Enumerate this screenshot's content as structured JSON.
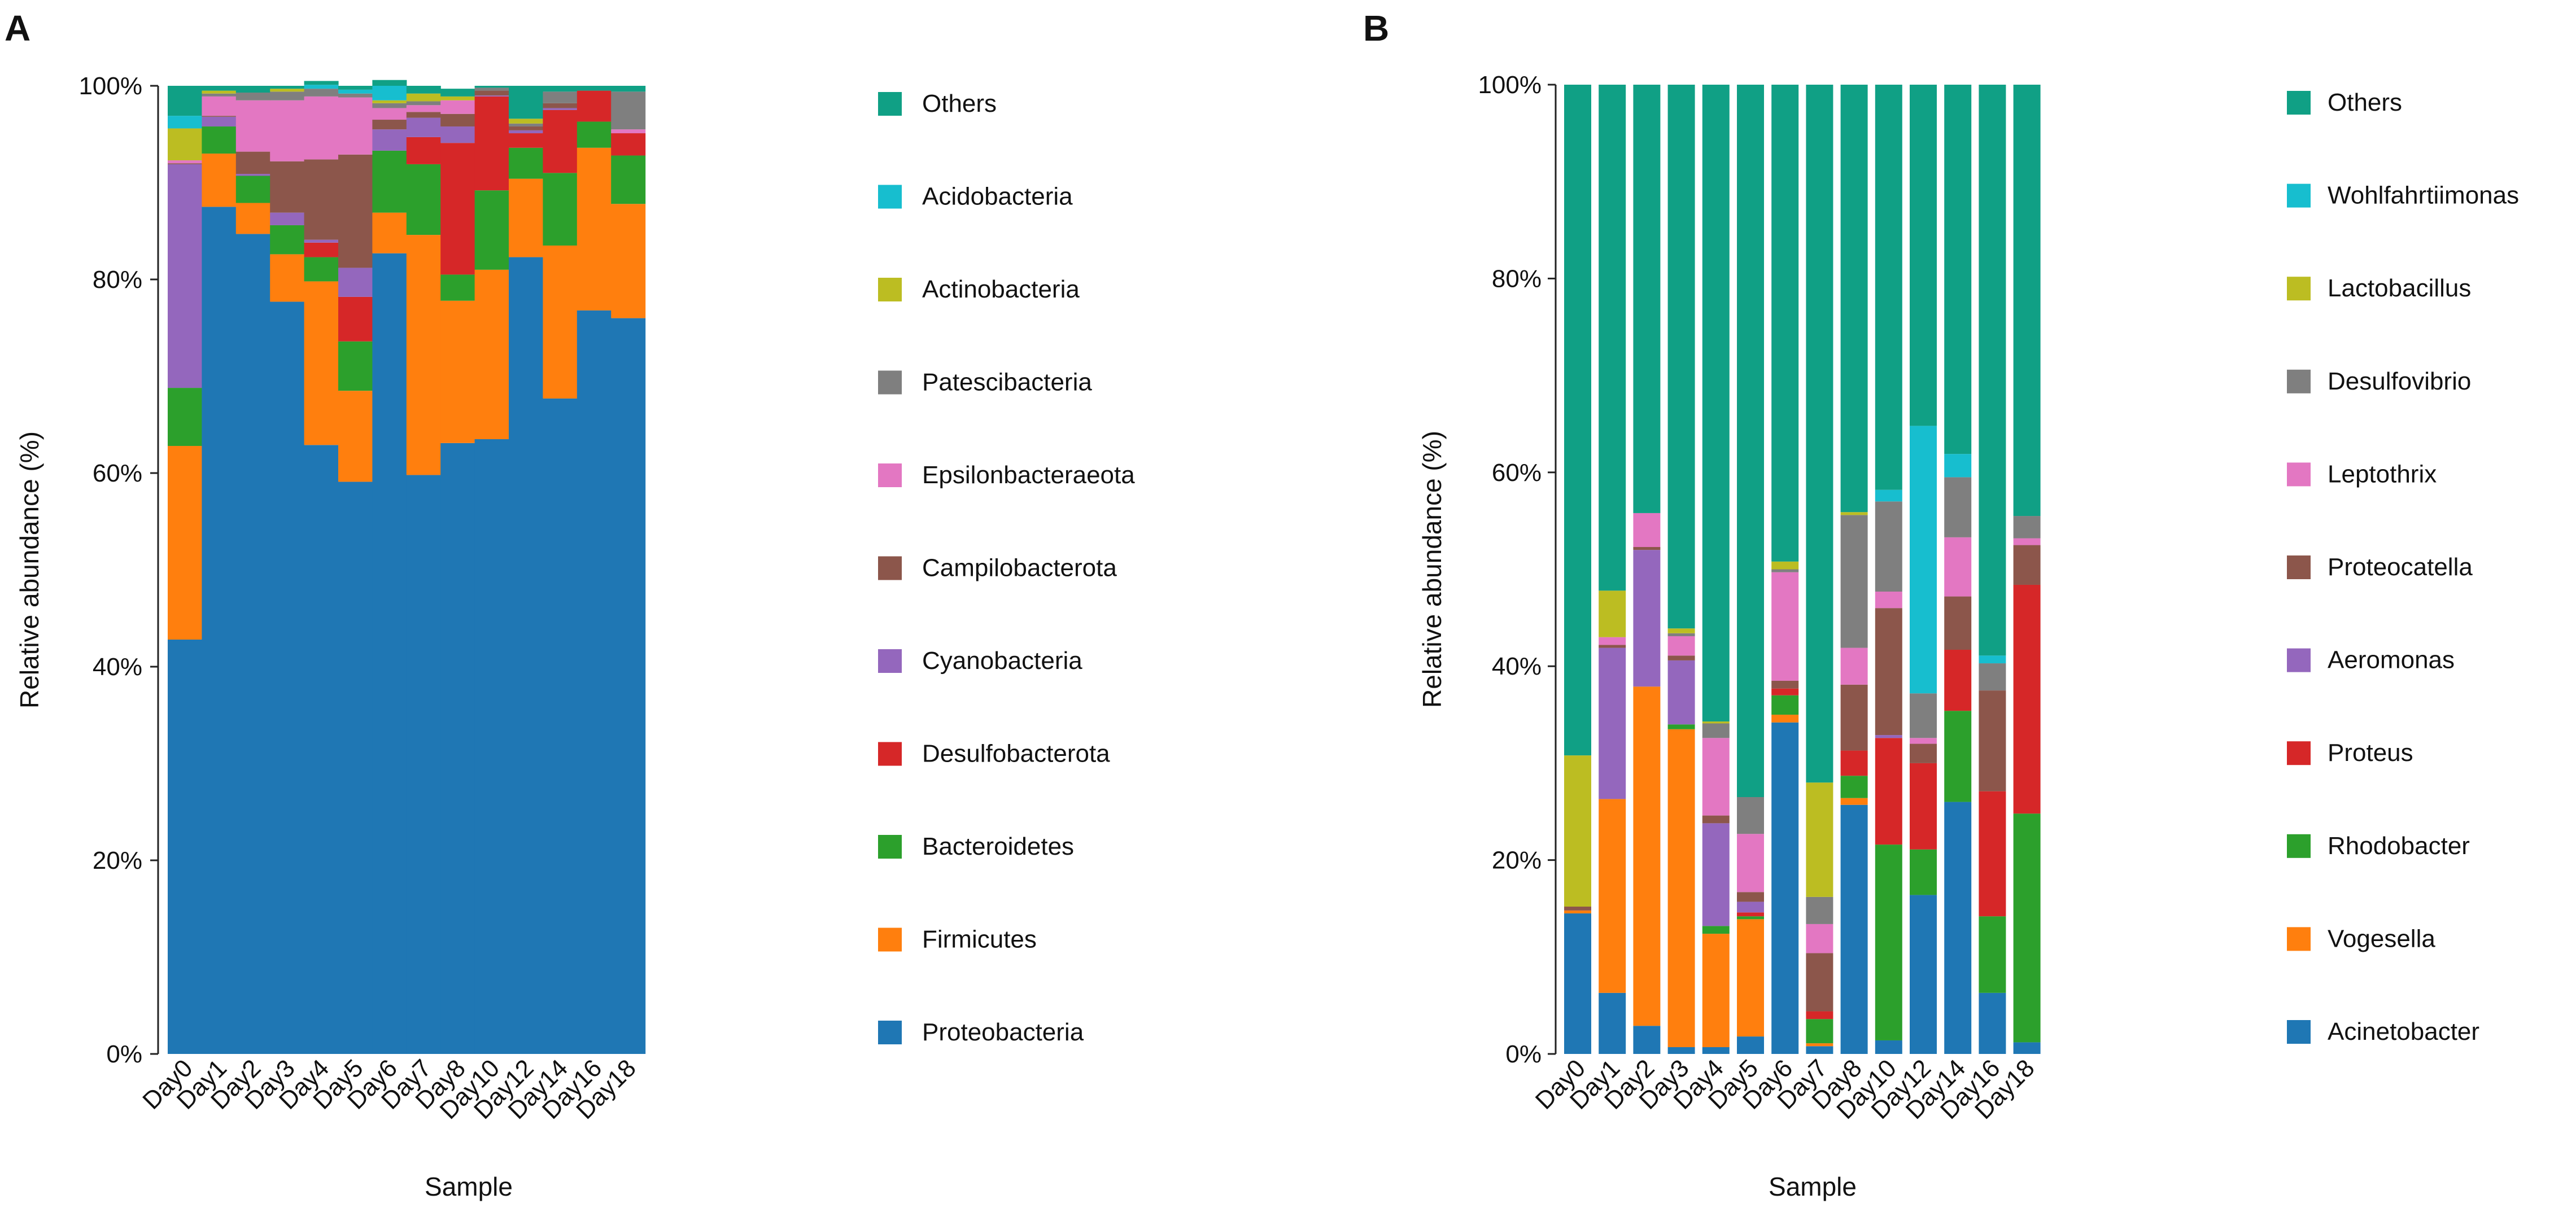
{
  "colors": [
    "#1f77b4",
    "#ff7f0e",
    "#2ca02c",
    "#d62728",
    "#9467bd",
    "#8c564b",
    "#e377c2",
    "#7f7f7f",
    "#bcbd22",
    "#17becf",
    "#10a085"
  ],
  "chart_data": [
    {
      "type": "bar",
      "stacked": true,
      "panel_label": "A",
      "title": "",
      "xlabel": "Sample",
      "ylabel": "Relative abundance (%)",
      "ylim": [
        0,
        100
      ],
      "yticks": [
        "0%",
        "20%",
        "40%",
        "60%",
        "80%",
        "100%"
      ],
      "categories": [
        "Day0",
        "Day1",
        "Day2",
        "Day3",
        "Day4",
        "Day5",
        "Day6",
        "Day7",
        "Day8",
        "Day10",
        "Day12",
        "Day14",
        "Day16",
        "Day18"
      ],
      "series": [
        {
          "name": "Proteobacteria",
          "values": [
            42.8,
            87.5,
            84.7,
            77.7,
            62.9,
            59.1,
            82.7,
            59.8,
            63.1,
            63.5,
            82.3,
            67.7,
            76.8,
            76.0
          ]
        },
        {
          "name": "Firmicutes",
          "values": [
            20.0,
            5.5,
            3.2,
            4.9,
            16.9,
            9.4,
            4.2,
            24.8,
            14.7,
            17.5,
            8.1,
            15.8,
            16.8,
            11.8
          ]
        },
        {
          "name": "Bacteroidetes",
          "values": [
            6.0,
            2.8,
            2.8,
            3.0,
            2.5,
            5.1,
            6.4,
            7.3,
            2.7,
            8.2,
            3.2,
            7.5,
            2.7,
            5.0
          ]
        },
        {
          "name": "Desulfobacterota",
          "values": [
            0,
            0,
            0,
            0,
            1.5,
            4.6,
            0,
            2.8,
            13.6,
            9.7,
            1.5,
            6.5,
            3.2,
            2.3
          ]
        },
        {
          "name": "Cyanobacteria",
          "values": [
            23.1,
            1.0,
            0.2,
            1.3,
            0.3,
            3.0,
            2.2,
            2.0,
            1.7,
            0.1,
            0.3,
            0.2,
            0,
            0
          ]
        },
        {
          "name": "Campilobacterota",
          "values": [
            0.1,
            0.1,
            2.3,
            5.3,
            8.3,
            11.7,
            1.0,
            0.6,
            1.3,
            0.5,
            0.4,
            0.5,
            0,
            0
          ]
        },
        {
          "name": "Epsilonbacteraeota",
          "values": [
            0.3,
            2.0,
            5.3,
            6.3,
            6.5,
            5.9,
            1.2,
            0.7,
            1.4,
            0,
            0,
            0,
            0,
            0.4
          ]
        },
        {
          "name": "Patescibacteria",
          "values": [
            0,
            0.3,
            0.8,
            0.9,
            0.8,
            0.4,
            0.5,
            0.4,
            0,
            0.3,
            0.3,
            1.2,
            0,
            3.9
          ]
        },
        {
          "name": "Actinobacteria",
          "values": [
            3.3,
            0.3,
            0,
            0.3,
            0,
            0,
            0.3,
            0.8,
            0.4,
            0,
            0.5,
            0,
            0,
            0
          ]
        },
        {
          "name": "Acidobacteria",
          "values": [
            1.3,
            0,
            0,
            0,
            0.4,
            0.4,
            1.5,
            0,
            0,
            0,
            0,
            0,
            0,
            0
          ]
        },
        {
          "name": "Others",
          "values": [
            3.1,
            0.5,
            0.7,
            0.3,
            0.4,
            0.4,
            0.6,
            0.8,
            0.8,
            0.2,
            3.4,
            0.6,
            0.5,
            0.6
          ]
        }
      ]
    },
    {
      "type": "bar",
      "stacked": true,
      "panel_label": "B",
      "title": "",
      "xlabel": "Sample",
      "ylabel": "Relative abundance (%)",
      "ylim": [
        0,
        100
      ],
      "yticks": [
        "0%",
        "20%",
        "40%",
        "60%",
        "80%",
        "100%"
      ],
      "categories": [
        "Day0",
        "Day1",
        "Day2",
        "Day3",
        "Day4",
        "Day5",
        "Day6",
        "Day7",
        "Day8",
        "Day10",
        "Day12",
        "Day14",
        "Day16",
        "Day18"
      ],
      "series": [
        {
          "name": "Acinetobacter",
          "values": [
            14.5,
            6.3,
            2.9,
            0.7,
            0.7,
            1.8,
            34.2,
            0.8,
            25.7,
            1.4,
            16.4,
            26.0,
            6.3,
            1.2
          ]
        },
        {
          "name": "Vogesella",
          "values": [
            0.3,
            20.0,
            35.0,
            32.8,
            11.7,
            12.1,
            0.8,
            0.3,
            0.7,
            0,
            0,
            0,
            0,
            0
          ]
        },
        {
          "name": "Rhodobacter",
          "values": [
            0,
            0,
            0,
            0.5,
            0.8,
            0.3,
            2.0,
            2.5,
            2.3,
            20.2,
            4.7,
            9.4,
            7.9,
            23.6
          ]
        },
        {
          "name": "Proteus",
          "values": [
            0,
            0,
            0,
            0,
            0,
            0.4,
            0.7,
            0.8,
            2.6,
            11.0,
            8.9,
            6.3,
            12.9,
            23.6
          ]
        },
        {
          "name": "Aeromonas",
          "values": [
            0,
            15.6,
            14.1,
            6.6,
            10.6,
            1.1,
            0,
            0,
            0,
            0.3,
            0,
            0,
            0,
            0
          ]
        },
        {
          "name": "Proteocatella",
          "values": [
            0.4,
            0.3,
            0.3,
            0.5,
            0.8,
            1.0,
            0.8,
            6.0,
            6.8,
            13.1,
            2.0,
            5.5,
            10.4,
            4.1
          ]
        },
        {
          "name": "Leptothrix",
          "values": [
            0,
            0.8,
            3.5,
            2.0,
            8.0,
            6.0,
            11.2,
            3.0,
            3.8,
            1.7,
            0.6,
            6.1,
            0,
            0.7
          ]
        },
        {
          "name": "Desulfovibrio",
          "values": [
            0,
            0,
            0,
            0.3,
            1.5,
            3.8,
            0.3,
            2.8,
            13.7,
            9.3,
            4.6,
            6.2,
            2.8,
            2.3
          ]
        },
        {
          "name": "Lactobacillus",
          "values": [
            15.6,
            4.8,
            0,
            0.5,
            0.2,
            0,
            0.8,
            11.8,
            0.3,
            0,
            0,
            0,
            0,
            0
          ]
        },
        {
          "name": "Wohlfahrtiimonas",
          "values": [
            0,
            0,
            0,
            0,
            0,
            0,
            0,
            0,
            0,
            1.2,
            27.6,
            2.4,
            0.8,
            0
          ]
        },
        {
          "name": "Others",
          "values": [
            69.2,
            52.2,
            44.2,
            56.1,
            65.7,
            73.5,
            49.2,
            72.0,
            44.1,
            41.8,
            35.2,
            38.1,
            58.9,
            44.5
          ]
        }
      ]
    }
  ]
}
